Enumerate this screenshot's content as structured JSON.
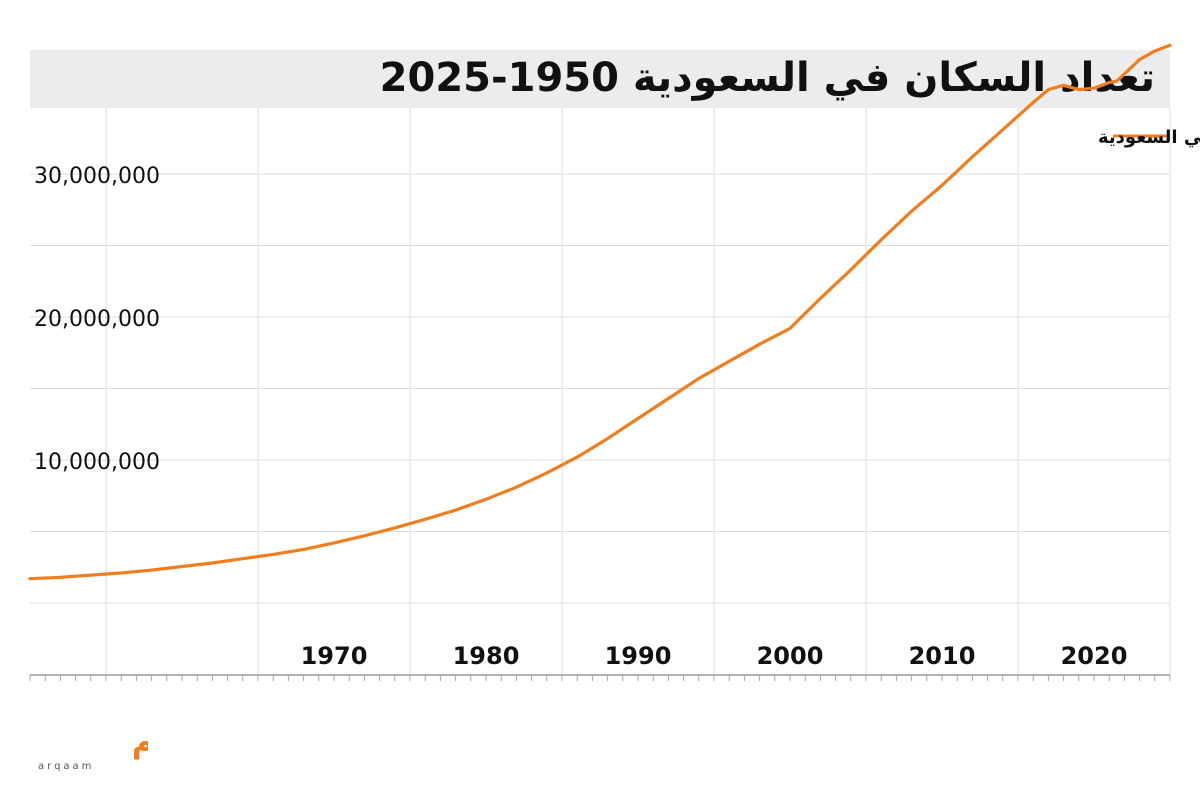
{
  "chart_data": {
    "type": "line",
    "title": "تعداد السكان في السعودية 1950-2025",
    "xlabel": "",
    "ylabel": "",
    "xlim": [
      1950,
      2025
    ],
    "ylim": [
      0,
      37000000
    ],
    "grid": true,
    "legend": {
      "position": "top-right",
      "entries": [
        "تعداد السكان في السعودية"
      ]
    },
    "x_ticks": [
      1970,
      1980,
      1990,
      2000,
      2010,
      2020
    ],
    "x_tick_labels": [
      "1970",
      "1980",
      "1990",
      "2000",
      "2010",
      "2020"
    ],
    "y_ticks": [
      10000000,
      20000000,
      30000000
    ],
    "y_tick_labels": [
      "10,000,000",
      "20,000,000",
      "30,000,000"
    ],
    "series": [
      {
        "name": "تعداد السكان في السعودية",
        "color": "#f07d1e",
        "x": [
          1950,
          1952,
          1954,
          1956,
          1958,
          1960,
          1962,
          1964,
          1966,
          1968,
          1970,
          1972,
          1974,
          1976,
          1978,
          1980,
          1982,
          1984,
          1986,
          1988,
          1990,
          1992,
          1994,
          1996,
          1998,
          2000,
          2002,
          2004,
          2006,
          2008,
          2010,
          2012,
          2014,
          2016,
          2017,
          2018,
          2019,
          2020,
          2021,
          2021.5,
          2022,
          2023,
          2024,
          2025
        ],
        "y": [
          1700000,
          1800000,
          1950000,
          2100000,
          2300000,
          2550000,
          2800000,
          3100000,
          3400000,
          3750000,
          4200000,
          4700000,
          5250000,
          5850000,
          6500000,
          7250000,
          8100000,
          9100000,
          10200000,
          11500000,
          12900000,
          14300000,
          15700000,
          16900000,
          18100000,
          19200000,
          21300000,
          23300000,
          25400000,
          27400000,
          29200000,
          31200000,
          33100000,
          35000000,
          35900000,
          36200000,
          35900000,
          36000000,
          36400000,
          36500000,
          37000000,
          38000000,
          38600000,
          39000000
        ]
      }
    ]
  },
  "logo": {
    "text": "أرقــام",
    "subtext": "arqaam",
    "color": "#f07d1e"
  }
}
